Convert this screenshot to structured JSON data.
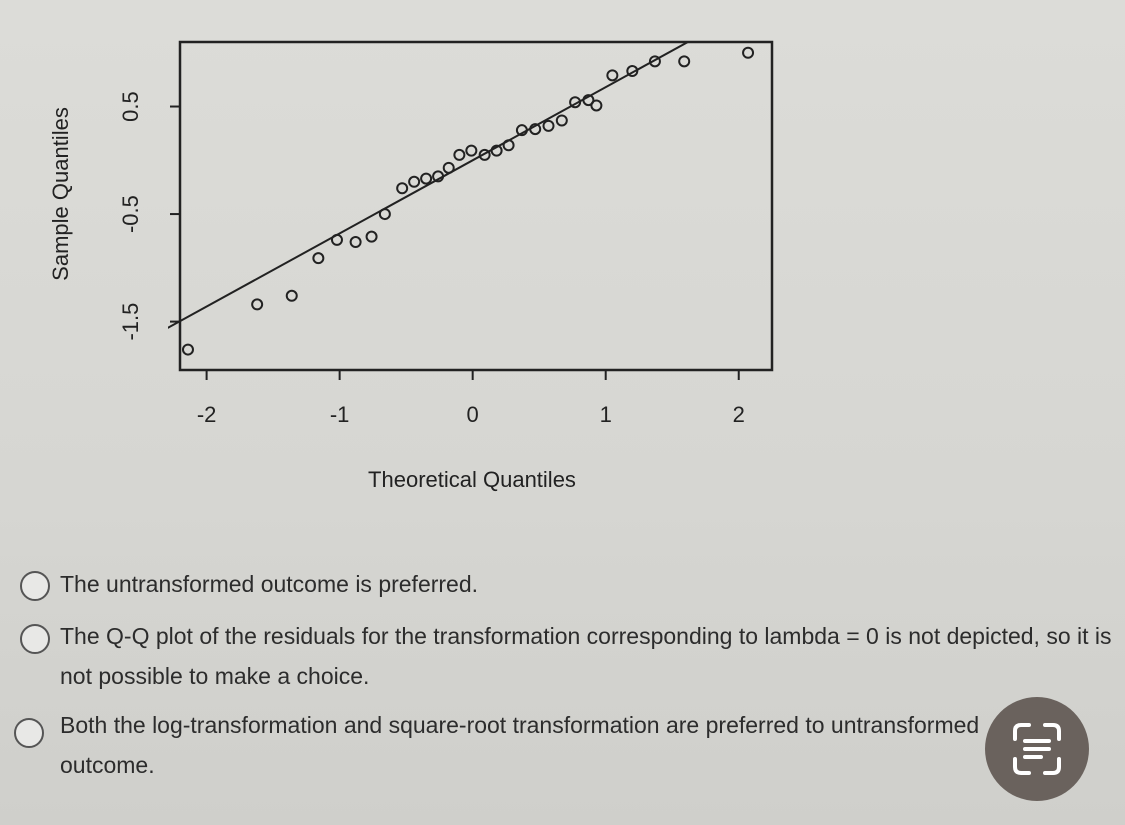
{
  "chart_data": {
    "type": "scatter",
    "xlabel": "Theoretical Quantiles",
    "ylabel": "Sample Quantiles",
    "xlim": [
      -2.2,
      2.25
    ],
    "ylim": [
      -1.95,
      1.1
    ],
    "xticks": [
      -2,
      -1,
      0,
      1,
      2
    ],
    "yticks": [
      -1.5,
      -0.5,
      0.5
    ],
    "color": "#222222",
    "x": [
      -2.14,
      -1.62,
      -1.36,
      -1.16,
      -1.02,
      -0.88,
      -0.76,
      -0.66,
      -0.53,
      -0.44,
      -0.35,
      -0.26,
      -0.18,
      -0.1,
      -0.01,
      0.09,
      0.18,
      0.27,
      0.37,
      0.47,
      0.57,
      0.67,
      0.77,
      0.87,
      0.93,
      1.05,
      1.2,
      1.37,
      1.59,
      2.07
    ],
    "y": [
      -1.76,
      -1.34,
      -1.26,
      -0.91,
      -0.74,
      -0.76,
      -0.71,
      -0.5,
      -0.26,
      -0.2,
      -0.17,
      -0.15,
      -0.07,
      0.05,
      0.09,
      0.05,
      0.09,
      0.14,
      0.28,
      0.29,
      0.32,
      0.37,
      0.54,
      0.56,
      0.51,
      0.79,
      0.83,
      0.92,
      0.92,
      1.0
    ],
    "reference_line": {
      "intercept": 0.0,
      "slope": 0.68
    }
  },
  "options": [
    "The untransformed outcome is preferred.",
    "The Q-Q plot of the residuals for the transformation corresponding to lambda = 0 is not depicted, so it is not possible to make a choice.",
    "Both the log-transformation and square-root transformation are preferred to untransformed outcome."
  ]
}
